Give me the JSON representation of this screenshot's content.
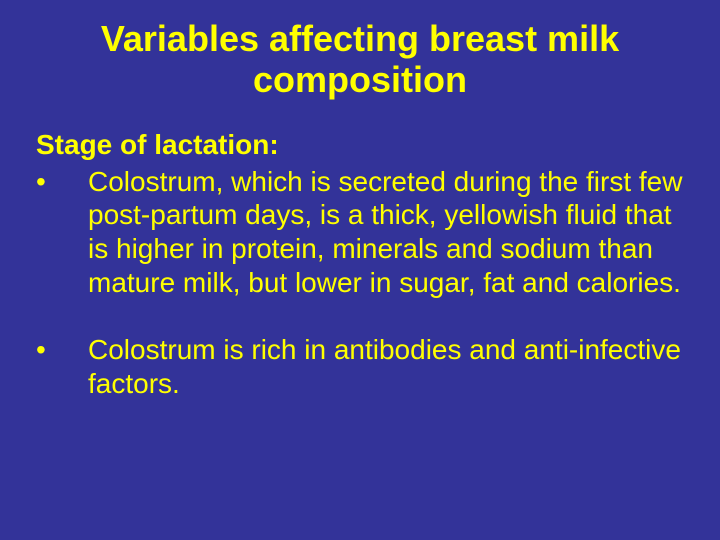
{
  "slide": {
    "background_color": "#333399",
    "text_color": "#ffff00",
    "title": "Variables affecting breast milk composition",
    "title_fontsize": 36,
    "title_fontweight": "bold",
    "subtitle": "Stage of lactation:",
    "subtitle_fontsize": 28,
    "subtitle_fontweight": "bold",
    "body_fontsize": 28,
    "bullets": [
      {
        "marker": "•",
        "text": "Colostrum, which is secreted during the first few post-partum days, is a thick, yellowish fluid that is higher in protein, minerals and sodium than mature milk, but lower in sugar, fat and calories."
      },
      {
        "marker": "•",
        "text": "Colostrum is rich in antibodies and anti-infective factors."
      }
    ]
  }
}
